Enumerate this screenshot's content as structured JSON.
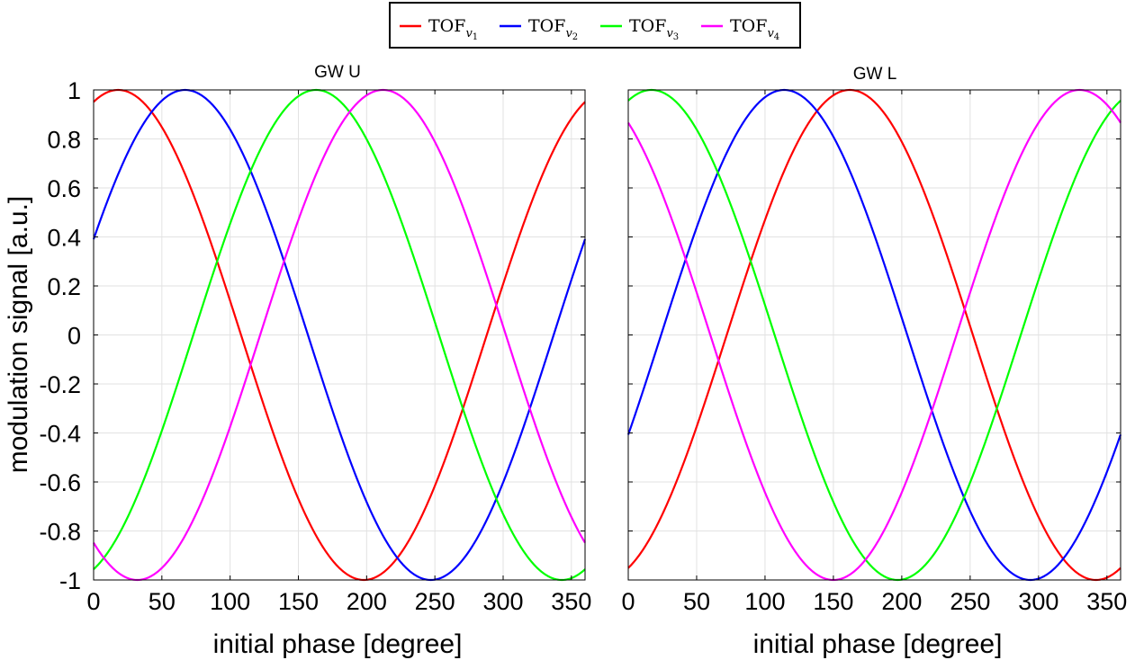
{
  "legend": {
    "entries": [
      {
        "base": "TOF",
        "sub": "v",
        "subsub": "1",
        "color": "#ff0000"
      },
      {
        "base": "TOF",
        "sub": "v",
        "subsub": "2",
        "color": "#0000ff"
      },
      {
        "base": "TOF",
        "sub": "v",
        "subsub": "3",
        "color": "#00ff00"
      },
      {
        "base": "TOF",
        "sub": "v",
        "subsub": "4",
        "color": "#ff00ff"
      }
    ]
  },
  "chart_data": [
    {
      "type": "line",
      "title": "GW U",
      "xlabel": "initial phase [degree]",
      "ylabel": "modulation signal [a.u.]",
      "xlim": [
        0,
        360
      ],
      "ylim": [
        -1,
        1
      ],
      "xticks": [
        "0",
        "50",
        "100",
        "150",
        "200",
        "250",
        "300",
        "350"
      ],
      "yticks": [
        "1",
        "0.8",
        "0.6",
        "0.4",
        "0.2",
        "0",
        "-0.2",
        "-0.4",
        "-0.6",
        "-0.8",
        "-1"
      ],
      "grid": true,
      "series": [
        {
          "name": "TOF_v1",
          "color": "#ff0000",
          "peak_phase_deg": 18
        },
        {
          "name": "TOF_v2",
          "color": "#0000ff",
          "peak_phase_deg": 67
        },
        {
          "name": "TOF_v3",
          "color": "#00ff00",
          "peak_phase_deg": 163
        },
        {
          "name": "TOF_v4",
          "color": "#ff00ff",
          "peak_phase_deg": 212
        }
      ]
    },
    {
      "type": "line",
      "title": "GW L",
      "xlabel": "initial phase [degree]",
      "ylabel": "",
      "xlim": [
        0,
        360
      ],
      "ylim": [
        -1,
        1
      ],
      "xticks": [
        "0",
        "50",
        "100",
        "150",
        "200",
        "250",
        "300",
        "350"
      ],
      "yticks": [],
      "grid": true,
      "series": [
        {
          "name": "TOF_v1",
          "color": "#ff0000",
          "peak_phase_deg": 162
        },
        {
          "name": "TOF_v2",
          "color": "#0000ff",
          "peak_phase_deg": 114
        },
        {
          "name": "TOF_v3",
          "color": "#00ff00",
          "peak_phase_deg": 17
        },
        {
          "name": "TOF_v4",
          "color": "#ff00ff",
          "peak_phase_deg": 330
        }
      ]
    }
  ]
}
